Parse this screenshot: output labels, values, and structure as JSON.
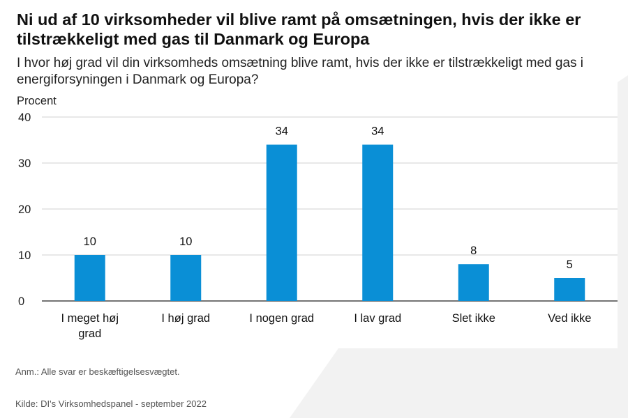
{
  "header": {
    "title": "Ni ud af 10 virksomheder vil blive ramt på omsætningen, hvis der ikke er tilstrækkeligt med gas til Danmark og Europa",
    "subtitle": "I hvor høj grad vil din virksomheds omsætning blive ramt, hvis der ikke er tilstrækkeligt med gas i energiforsyningen i Danmark og Europa?"
  },
  "footer": {
    "note": "Anm.: Alle svar er beskæftigelsesvægtet.",
    "source": "Kilde: DI's Virksomhedspanel - september 2022"
  },
  "colors": {
    "bar": "#0a8fd6",
    "grid": "#d0d0d0",
    "background_panel": "#f2f2f2"
  },
  "chart_data": {
    "type": "bar",
    "title": "Ni ud af 10 virksomheder vil blive ramt på omsætningen, hvis der ikke er tilstrækkeligt med gas til Danmark og Europa",
    "subtitle": "I hvor høj grad vil din virksomheds omsætning blive ramt, hvis der ikke er tilstrækkeligt med gas i energiforsyningen i Danmark og Europa?",
    "ylabel": "Procent",
    "xlabel": "",
    "categories": [
      [
        "I meget høj",
        "grad"
      ],
      [
        "I høj grad"
      ],
      [
        "I nogen grad"
      ],
      [
        "I lav grad"
      ],
      [
        "Slet ikke"
      ],
      [
        "Ved ikke"
      ]
    ],
    "values": [
      10,
      10,
      34,
      34,
      8,
      5
    ],
    "data_labels": [
      "10",
      "10",
      "34",
      "34",
      "8",
      "5"
    ],
    "ylim": [
      0,
      40
    ],
    "yticks": [
      0,
      10,
      20,
      30,
      40
    ],
    "grid": true,
    "legend": "none"
  }
}
